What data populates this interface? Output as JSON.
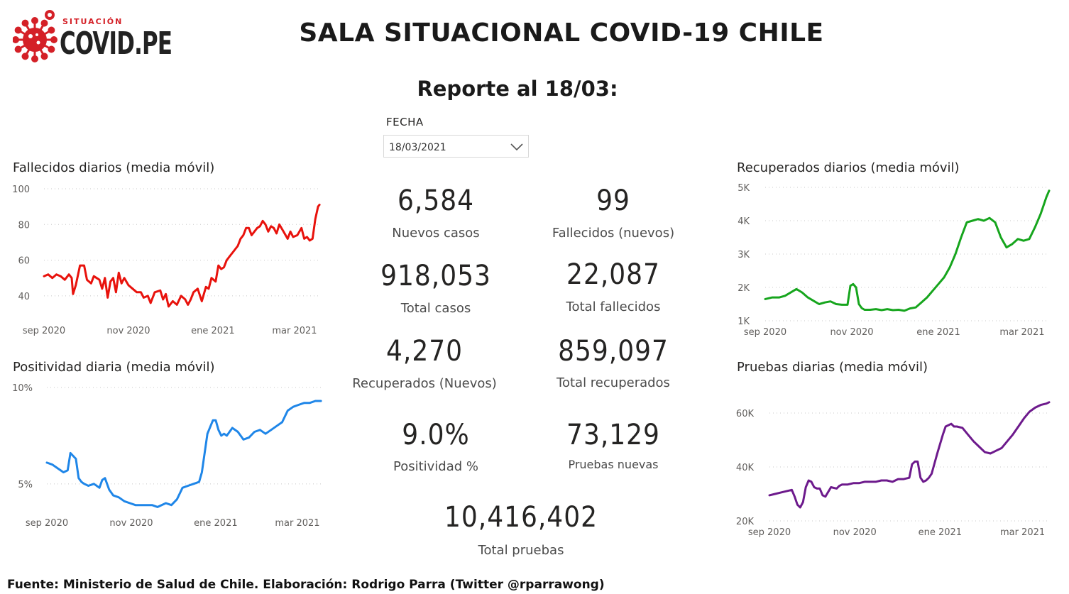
{
  "logo": {
    "small_text": "SITUACIÓN",
    "big_text": "COVID.PE"
  },
  "title": "SALA SITUACIONAL COVID-19 CHILE",
  "subtitle": "Reporte al 18/03:",
  "date_filter": {
    "label": "FECHA",
    "value": "18/03/2021"
  },
  "kpis": {
    "nuevos_casos": {
      "value": "6,584",
      "label": "Nuevos casos"
    },
    "fallecidos_nuevos": {
      "value": "99",
      "label": "Fallecidos (nuevos)"
    },
    "total_casos": {
      "value": "918,053",
      "label": "Total casos"
    },
    "total_fallecidos": {
      "value": "22,087",
      "label": "Total fallecidos"
    },
    "recuperados_nuevos": {
      "value": "4,270",
      "label": "Recuperados (Nuevos)"
    },
    "total_recuperados": {
      "value": "859,097",
      "label": "Total recuperados"
    },
    "positividad": {
      "value": "9.0%",
      "label": "Positividad %"
    },
    "pruebas_nuevas": {
      "value": "73,129",
      "label": "Pruebas nuevas"
    },
    "total_pruebas": {
      "value": "10,416,402",
      "label": "Total pruebas"
    }
  },
  "source": "Fuente: Ministerio de Salud de Chile. Elaboración: Rodrigo Parra (Twitter @rparrawong)",
  "chart_data": [
    {
      "id": "fallecidos",
      "type": "line",
      "title": "Fallecidos diarios (media móvil)",
      "color": "#e8120c",
      "xlim": [
        0,
        200
      ],
      "ylim": [
        30,
        100
      ],
      "yticks": [
        {
          "v": 100,
          "label": "100"
        },
        {
          "v": 80,
          "label": "80"
        },
        {
          "v": 60,
          "label": "60"
        },
        {
          "v": 40,
          "label": "40"
        }
      ],
      "xticks": [
        {
          "v": 0,
          "label": "sep 2020"
        },
        {
          "v": 61,
          "label": "nov 2020"
        },
        {
          "v": 122,
          "label": "ene 2021"
        },
        {
          "v": 181,
          "label": "mar 2021"
        }
      ],
      "x": [
        0,
        3,
        6,
        9,
        12,
        15,
        18,
        20,
        21,
        23,
        26,
        29,
        31,
        34,
        36,
        40,
        42,
        44,
        46,
        48,
        50,
        52,
        54,
        56,
        58,
        61,
        64,
        67,
        70,
        72,
        75,
        77,
        80,
        84,
        86,
        88,
        90,
        93,
        96,
        99,
        102,
        104,
        106,
        108,
        111,
        114,
        117,
        119,
        121,
        124,
        126,
        128,
        130,
        132,
        134,
        137,
        140,
        142,
        144,
        146,
        148,
        150,
        152,
        154,
        156,
        158,
        160,
        162,
        164,
        166,
        168,
        170,
        173,
        176,
        178,
        180,
        183,
        186,
        188,
        190,
        192,
        194,
        196,
        198,
        199
      ],
      "y": [
        51,
        52,
        50,
        52,
        51,
        49,
        52,
        50,
        41,
        46,
        57,
        57,
        49,
        47,
        51,
        49,
        44,
        50,
        39,
        48,
        50,
        42,
        53,
        47,
        50,
        46,
        44,
        42,
        42,
        39,
        40,
        36,
        42,
        43,
        38,
        41,
        34,
        37,
        35,
        40,
        38,
        35,
        38,
        42,
        44,
        37,
        45,
        44,
        50,
        48,
        57,
        55,
        56,
        60,
        62,
        65,
        68,
        72,
        74,
        78,
        78,
        74,
        76,
        78,
        79,
        82,
        80,
        76,
        79,
        78,
        75,
        80,
        76,
        72,
        76,
        73,
        74,
        78,
        72,
        73,
        71,
        72,
        83,
        90,
        91
      ]
    },
    {
      "id": "recuperados",
      "type": "line",
      "title": "Recuperados diarios (media móvil)",
      "color": "#16a51d",
      "xlim": [
        0,
        200
      ],
      "ylim": [
        1000,
        5000
      ],
      "yticks": [
        {
          "v": 5000,
          "label": "5K"
        },
        {
          "v": 4000,
          "label": "4K"
        },
        {
          "v": 3000,
          "label": "3K"
        },
        {
          "v": 2000,
          "label": "2K"
        },
        {
          "v": 1000,
          "label": "1K"
        }
      ],
      "xticks": [
        {
          "v": 0,
          "label": "sep 2020"
        },
        {
          "v": 61,
          "label": "nov 2020"
        },
        {
          "v": 122,
          "label": "ene 2021"
        },
        {
          "v": 181,
          "label": "mar 2021"
        }
      ],
      "x": [
        0,
        5,
        10,
        14,
        18,
        22,
        26,
        30,
        34,
        38,
        42,
        46,
        50,
        54,
        58,
        60,
        62,
        64,
        66,
        68,
        70,
        74,
        78,
        82,
        86,
        90,
        94,
        98,
        102,
        106,
        110,
        114,
        118,
        122,
        126,
        130,
        134,
        138,
        142,
        146,
        150,
        154,
        158,
        162,
        166,
        170,
        174,
        178,
        182,
        186,
        190,
        194,
        198,
        200
      ],
      "y": [
        1650,
        1700,
        1700,
        1750,
        1850,
        1950,
        1850,
        1700,
        1600,
        1500,
        1550,
        1580,
        1500,
        1480,
        1480,
        2050,
        2100,
        2000,
        1500,
        1380,
        1330,
        1330,
        1350,
        1320,
        1350,
        1320,
        1330,
        1300,
        1370,
        1400,
        1550,
        1700,
        1900,
        2100,
        2300,
        2600,
        3000,
        3500,
        3950,
        4000,
        4050,
        4000,
        4080,
        3950,
        3500,
        3200,
        3300,
        3450,
        3400,
        3450,
        3800,
        4200,
        4700,
        4900
      ]
    },
    {
      "id": "positividad",
      "type": "line",
      "title": "Positividad diaria (media móvil)",
      "color": "#1f86e8",
      "xlim": [
        0,
        200
      ],
      "ylim": [
        3.3,
        10
      ],
      "yticks": [
        {
          "v": 10,
          "label": "10%"
        },
        {
          "v": 5,
          "label": "5%"
        }
      ],
      "xticks": [
        {
          "v": 0,
          "label": "sep 2020"
        },
        {
          "v": 61,
          "label": "nov 2020"
        },
        {
          "v": 122,
          "label": "ene 2021"
        },
        {
          "v": 181,
          "label": "mar 2021"
        }
      ],
      "x": [
        0,
        4,
        8,
        12,
        15,
        17,
        21,
        23,
        25,
        27,
        30,
        34,
        38,
        40,
        42,
        45,
        48,
        52,
        56,
        60,
        64,
        70,
        76,
        80,
        86,
        90,
        94,
        98,
        102,
        106,
        110,
        112,
        116,
        120,
        122,
        124,
        126,
        128,
        130,
        134,
        138,
        142,
        146,
        150,
        154,
        158,
        162,
        166,
        170,
        174,
        178,
        182,
        186,
        190,
        194,
        198
      ],
      "y": [
        6.1,
        6,
        5.8,
        5.6,
        5.7,
        6.6,
        6.3,
        5.3,
        5.1,
        5,
        4.9,
        5,
        4.8,
        5.2,
        5.3,
        4.7,
        4.4,
        4.3,
        4.1,
        4,
        3.9,
        3.9,
        3.9,
        3.8,
        4,
        3.9,
        4.2,
        4.8,
        4.9,
        5,
        5.1,
        5.6,
        7.6,
        8.3,
        8.3,
        7.8,
        7.5,
        7.6,
        7.5,
        7.9,
        7.7,
        7.3,
        7.4,
        7.7,
        7.8,
        7.6,
        7.8,
        8,
        8.2,
        8.8,
        9,
        9.1,
        9.2,
        9.2,
        9.3,
        9.3
      ]
    },
    {
      "id": "pruebas",
      "type": "line",
      "title": "Pruebas diarias (media móvil)",
      "color": "#6d1a8c",
      "xlim": [
        0,
        200
      ],
      "ylim": [
        20000,
        70000
      ],
      "yticks": [
        {
          "v": 60000,
          "label": "60K"
        },
        {
          "v": 40000,
          "label": "40K"
        },
        {
          "v": 20000,
          "label": "20K"
        }
      ],
      "xticks": [
        {
          "v": 0,
          "label": "sep 2020"
        },
        {
          "v": 61,
          "label": "nov 2020"
        },
        {
          "v": 122,
          "label": "ene 2021"
        },
        {
          "v": 181,
          "label": "mar 2021"
        }
      ],
      "x": [
        0,
        4,
        8,
        12,
        16,
        18,
        20,
        22,
        24,
        26,
        28,
        30,
        32,
        34,
        36,
        38,
        40,
        44,
        48,
        50,
        52,
        56,
        60,
        64,
        68,
        72,
        76,
        80,
        84,
        88,
        92,
        96,
        100,
        102,
        104,
        106,
        108,
        110,
        112,
        114,
        116,
        120,
        124,
        126,
        128,
        130,
        132,
        134,
        138,
        142,
        146,
        150,
        154,
        158,
        162,
        166,
        170,
        174,
        178,
        182,
        186,
        190,
        194,
        198,
        200
      ],
      "y": [
        29500,
        30000,
        30500,
        31000,
        31500,
        29000,
        26000,
        25000,
        27000,
        32500,
        35000,
        34500,
        32500,
        32000,
        32000,
        29500,
        29000,
        32500,
        32000,
        33000,
        33500,
        33500,
        34000,
        34000,
        34500,
        34500,
        34500,
        35000,
        35000,
        34500,
        35500,
        35500,
        36000,
        41000,
        42000,
        42000,
        36000,
        34500,
        35000,
        36000,
        37500,
        45000,
        52000,
        55000,
        55500,
        56000,
        55000,
        55000,
        54500,
        52000,
        49500,
        47500,
        45500,
        45000,
        46000,
        47000,
        49500,
        52000,
        55000,
        58000,
        60500,
        62000,
        63000,
        63500,
        64000
      ]
    }
  ]
}
